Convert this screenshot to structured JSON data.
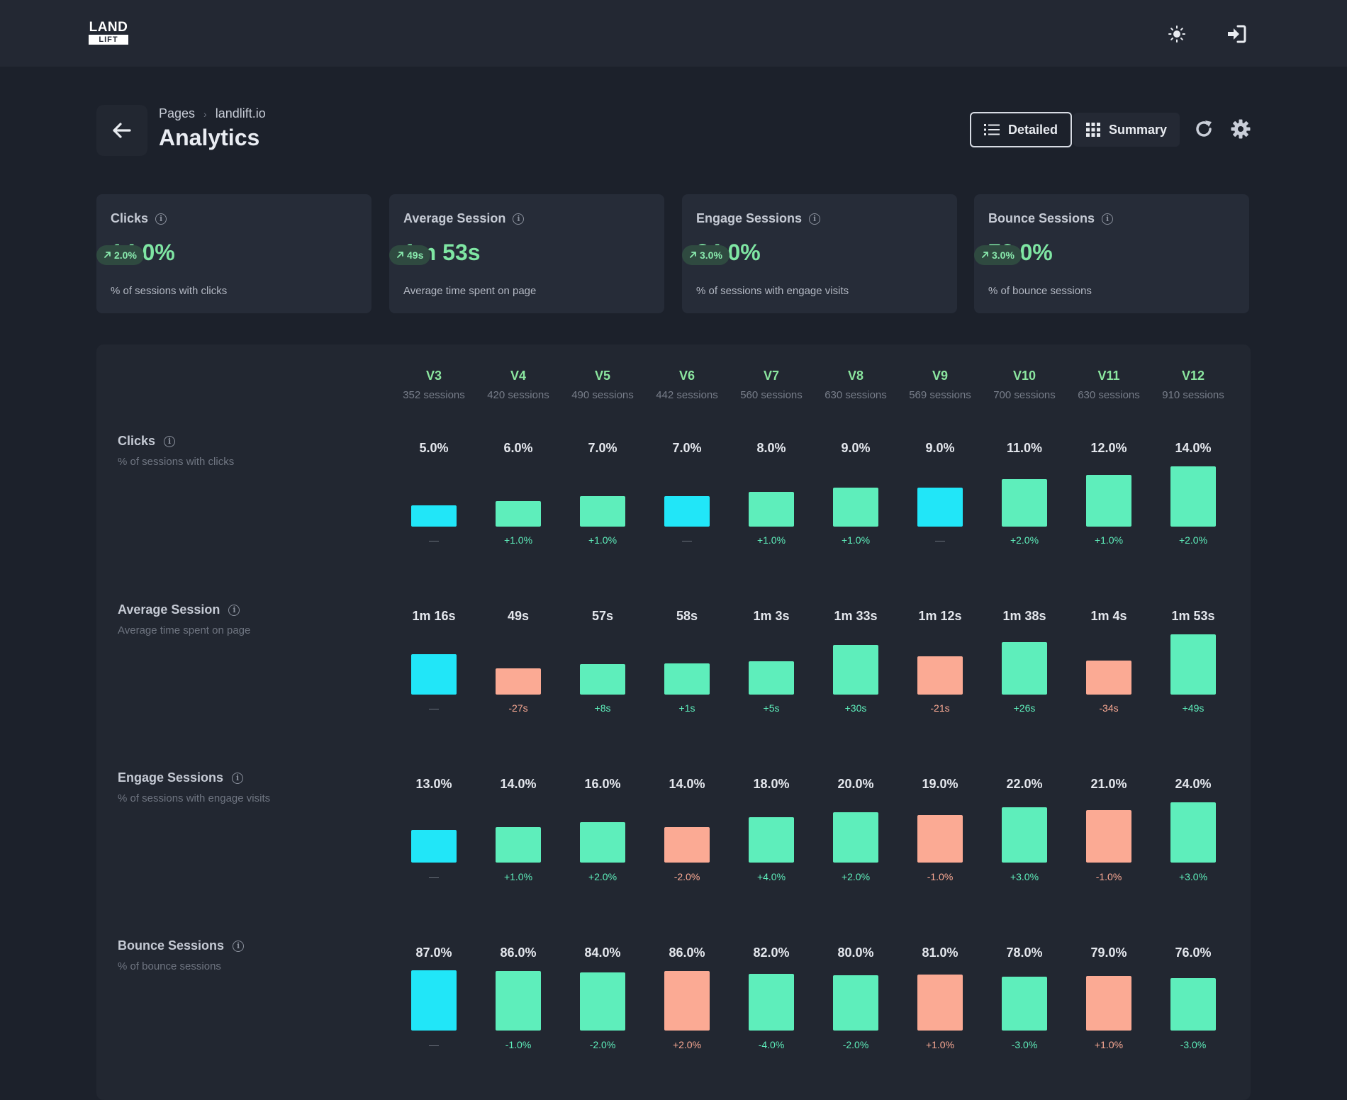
{
  "app": {
    "logo_top": "LAND",
    "logo_bottom": "LIFT"
  },
  "header": {
    "breadcrumb": [
      "Pages",
      "landlift.io"
    ],
    "title": "Analytics",
    "view_options": [
      "Detailed",
      "Summary"
    ],
    "active_view": "Detailed"
  },
  "icons": {
    "theme": "sun-icon",
    "signin": "sign-in-icon",
    "back": "arrow-left-icon",
    "detailed": "list-icon",
    "summary": "grid-icon",
    "refresh": "refresh-icon",
    "settings": "gear-icon",
    "info": "info-icon"
  },
  "colors": {
    "positive": "#5eeebb",
    "negative": "#fbaa94",
    "baseline": "#21e6f8",
    "accent_text": "#7fe6a3"
  },
  "summary_cards": [
    {
      "title": "Clicks",
      "value": "14.0%",
      "change": "2.0%",
      "description": "% of sessions with clicks"
    },
    {
      "title": "Average Session",
      "value": "1m 53s",
      "change": "49s",
      "description": "Average time spent on page"
    },
    {
      "title": "Engage Sessions",
      "value": "24.0%",
      "change": "3.0%",
      "description": "% of sessions with engage visits"
    },
    {
      "title": "Bounce Sessions",
      "value": "76.0%",
      "change": "3.0%",
      "description": "% of bounce sessions"
    }
  ],
  "versions": [
    {
      "name": "V3",
      "sessions": "352 sessions"
    },
    {
      "name": "V4",
      "sessions": "420 sessions"
    },
    {
      "name": "V5",
      "sessions": "490 sessions"
    },
    {
      "name": "V6",
      "sessions": "442 sessions"
    },
    {
      "name": "V7",
      "sessions": "560 sessions"
    },
    {
      "name": "V8",
      "sessions": "630 sessions"
    },
    {
      "name": "V9",
      "sessions": "569 sessions"
    },
    {
      "name": "V10",
      "sessions": "700 sessions"
    },
    {
      "name": "V11",
      "sessions": "630 sessions"
    },
    {
      "name": "V12",
      "sessions": "910 sessions"
    }
  ],
  "metrics": [
    {
      "title": "Clicks",
      "description": "% of sessions with clicks",
      "values": [
        "5.0%",
        "6.0%",
        "7.0%",
        "7.0%",
        "8.0%",
        "9.0%",
        "9.0%",
        "11.0%",
        "12.0%",
        "14.0%"
      ],
      "numeric": [
        5,
        6,
        7,
        7,
        8,
        9,
        9,
        11,
        12,
        14
      ],
      "deltas": [
        "—",
        "+1.0%",
        "+1.0%",
        "—",
        "+1.0%",
        "+1.0%",
        "—",
        "+2.0%",
        "+1.0%",
        "+2.0%"
      ],
      "status": [
        "baseline",
        "positive",
        "positive",
        "baseline",
        "positive",
        "positive",
        "baseline",
        "positive",
        "positive",
        "positive"
      ]
    },
    {
      "title": "Average Session",
      "description": "Average time spent on page",
      "values": [
        "1m 16s",
        "49s",
        "57s",
        "58s",
        "1m 3s",
        "1m 33s",
        "1m 12s",
        "1m 38s",
        "1m 4s",
        "1m 53s"
      ],
      "numeric": [
        76,
        49,
        57,
        58,
        63,
        93,
        72,
        98,
        64,
        113
      ],
      "deltas": [
        "—",
        "-27s",
        "+8s",
        "+1s",
        "+5s",
        "+30s",
        "-21s",
        "+26s",
        "-34s",
        "+49s"
      ],
      "status": [
        "baseline",
        "negative",
        "positive",
        "positive",
        "positive",
        "positive",
        "negative",
        "positive",
        "negative",
        "positive"
      ]
    },
    {
      "title": "Engage Sessions",
      "description": "% of sessions with engage visits",
      "values": [
        "13.0%",
        "14.0%",
        "16.0%",
        "14.0%",
        "18.0%",
        "20.0%",
        "19.0%",
        "22.0%",
        "21.0%",
        "24.0%"
      ],
      "numeric": [
        13,
        14,
        16,
        14,
        18,
        20,
        19,
        22,
        21,
        24
      ],
      "deltas": [
        "—",
        "+1.0%",
        "+2.0%",
        "-2.0%",
        "+4.0%",
        "+2.0%",
        "-1.0%",
        "+3.0%",
        "-1.0%",
        "+3.0%"
      ],
      "status": [
        "baseline",
        "positive",
        "positive",
        "negative",
        "positive",
        "positive",
        "negative",
        "positive",
        "negative",
        "positive"
      ]
    },
    {
      "title": "Bounce Sessions",
      "description": "% of bounce sessions",
      "values": [
        "87.0%",
        "86.0%",
        "84.0%",
        "86.0%",
        "82.0%",
        "80.0%",
        "81.0%",
        "78.0%",
        "79.0%",
        "76.0%"
      ],
      "numeric": [
        87,
        86,
        84,
        86,
        82,
        80,
        81,
        78,
        79,
        76
      ],
      "deltas": [
        "—",
        "-1.0%",
        "-2.0%",
        "+2.0%",
        "-4.0%",
        "-2.0%",
        "+1.0%",
        "-3.0%",
        "+1.0%",
        "-3.0%"
      ],
      "status": [
        "baseline",
        "positive",
        "positive",
        "negative",
        "positive",
        "positive",
        "negative",
        "positive",
        "negative",
        "positive"
      ]
    }
  ]
}
